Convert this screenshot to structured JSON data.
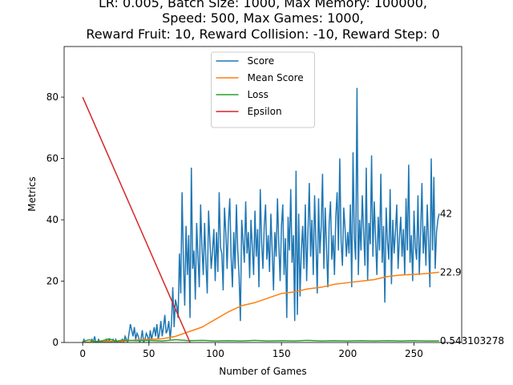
{
  "chart_data": {
    "type": "line",
    "title": [
      "LR: 0.005, Batch Size: 1000, Max Memory: 100000,",
      "Speed: 500, Max Games: 1000,",
      "Reward Fruit: 10, Reward Collision: -10, Reward Step: 0"
    ],
    "xlabel": "Number of Games",
    "ylabel": "Metrics",
    "xlim": [
      -14,
      286
    ],
    "ylim": [
      0,
      96.5
    ],
    "xticks": [
      0,
      50,
      100,
      150,
      200,
      250
    ],
    "yticks": [
      0,
      20,
      40,
      60,
      80
    ],
    "legend": "upper center",
    "x": [
      0,
      1,
      2,
      3,
      4,
      5,
      6,
      7,
      8,
      9,
      10,
      11,
      12,
      13,
      14,
      15,
      16,
      17,
      18,
      19,
      20,
      21,
      22,
      23,
      24,
      25,
      26,
      27,
      28,
      29,
      30,
      31,
      32,
      33,
      34,
      35,
      36,
      37,
      38,
      39,
      40,
      41,
      42,
      43,
      44,
      45,
      46,
      47,
      48,
      49,
      50,
      51,
      52,
      53,
      54,
      55,
      56,
      57,
      58,
      59,
      60,
      61,
      62,
      63,
      64,
      65,
      66,
      67,
      68,
      69,
      70,
      71,
      72,
      73,
      74,
      75,
      76,
      77,
      78,
      79,
      80,
      81,
      82,
      83,
      84,
      85,
      86,
      87,
      88,
      89,
      90,
      91,
      92,
      93,
      94,
      95,
      96,
      97,
      98,
      99,
      100,
      101,
      102,
      103,
      104,
      105,
      106,
      107,
      108,
      109,
      110,
      111,
      112,
      113,
      114,
      115,
      116,
      117,
      118,
      119,
      120,
      121,
      122,
      123,
      124,
      125,
      126,
      127,
      128,
      129,
      130,
      131,
      132,
      133,
      134,
      135,
      136,
      137,
      138,
      139,
      140,
      141,
      142,
      143,
      144,
      145,
      146,
      147,
      148,
      149,
      150,
      151,
      152,
      153,
      154,
      155,
      156,
      157,
      158,
      159,
      160,
      161,
      162,
      163,
      164,
      165,
      166,
      167,
      168,
      169,
      170,
      171,
      172,
      173,
      174,
      175,
      176,
      177,
      178,
      179,
      180,
      181,
      182,
      183,
      184,
      185,
      186,
      187,
      188,
      189,
      190,
      191,
      192,
      193,
      194,
      195,
      196,
      197,
      198,
      199,
      200,
      201,
      202,
      203,
      204,
      205,
      206,
      207,
      208,
      209,
      210,
      211,
      212,
      213,
      214,
      215,
      216,
      217,
      218,
      219,
      220,
      221,
      222,
      223,
      224,
      225,
      226,
      227,
      228,
      229,
      230,
      231,
      232,
      233,
      234,
      235,
      236,
      237,
      238,
      239,
      240,
      241,
      242,
      243,
      244,
      245,
      246,
      247,
      248,
      249,
      250,
      251,
      252,
      253,
      254,
      255,
      256,
      257,
      258,
      259,
      260,
      261,
      262,
      263,
      264,
      265,
      266,
      267,
      268,
      269
    ],
    "series": [
      {
        "name": "Score",
        "color": "#1f77b4",
        "values": [
          0,
          1,
          0,
          0,
          0,
          0,
          0,
          1,
          0,
          2,
          0,
          0,
          1,
          0,
          0,
          0,
          0,
          0,
          1,
          0,
          1,
          0,
          0,
          1,
          0,
          1,
          0,
          0,
          0,
          0,
          1,
          0,
          2,
          1,
          0,
          3,
          6,
          4,
          2,
          5,
          1,
          3,
          2,
          0,
          1,
          4,
          0,
          1,
          3,
          2,
          0,
          4,
          1,
          3,
          5,
          2,
          6,
          1,
          3,
          7,
          2,
          5,
          9,
          3,
          4,
          7,
          1,
          6,
          18,
          5,
          14,
          12,
          8,
          29,
          16,
          49,
          27,
          12,
          38,
          22,
          35,
          8,
          57,
          24,
          30,
          14,
          39,
          28,
          18,
          45,
          31,
          22,
          39,
          26,
          16,
          43,
          33,
          24,
          30,
          37,
          20,
          36,
          23,
          49,
          31,
          29,
          17,
          44,
          36,
          24,
          39,
          47,
          28,
          18,
          36,
          24,
          45,
          30,
          22,
          7,
          40,
          33,
          26,
          46,
          29,
          36,
          21,
          40,
          31,
          22,
          43,
          28,
          37,
          18,
          50,
          33,
          24,
          38,
          45,
          27,
          35,
          23,
          42,
          30,
          17,
          36,
          28,
          47,
          32,
          20,
          38,
          45,
          22,
          34,
          8,
          41,
          30,
          50,
          26,
          35,
          7,
          56,
          9,
          42,
          15,
          30,
          38,
          24,
          45,
          20,
          36,
          52,
          28,
          40,
          22,
          48,
          33,
          16,
          47,
          29,
          38,
          55,
          24,
          44,
          31,
          18,
          39,
          46,
          27,
          35,
          22,
          41,
          49,
          30,
          60,
          33,
          25,
          44,
          37,
          28,
          36,
          29,
          45,
          18,
          62,
          34,
          27,
          83,
          22,
          40,
          30,
          48,
          36,
          25,
          57,
          20,
          39,
          32,
          61,
          28,
          46,
          34,
          22,
          41,
          30,
          55,
          26,
          38,
          13,
          44,
          33,
          27,
          50,
          19,
          40,
          29,
          36,
          45,
          24,
          34,
          41,
          28,
          37,
          22,
          47,
          30,
          58,
          26,
          35,
          20,
          43,
          31,
          27,
          48,
          22,
          36,
          52,
          29,
          38,
          25,
          45,
          33,
          18,
          60,
          30,
          54,
          24,
          36,
          40,
          42
        ]
      },
      {
        "name": "Mean Score",
        "color": "#ff7f0e",
        "x": [
          0,
          10,
          20,
          30,
          40,
          50,
          60,
          70,
          80,
          90,
          100,
          110,
          120,
          130,
          140,
          150,
          160,
          170,
          180,
          190,
          200,
          210,
          220,
          230,
          240,
          250,
          260,
          269
        ],
        "values": [
          0,
          0.3,
          0.4,
          0.4,
          0.8,
          1,
          1.2,
          2,
          3.5,
          5,
          7.5,
          10,
          12,
          13,
          14.5,
          16,
          16.5,
          17.5,
          18,
          19,
          19.5,
          20,
          20.5,
          21.5,
          22,
          22.2,
          22.5,
          22.9
        ]
      },
      {
        "name": "Loss",
        "color": "#2ca02c",
        "x": [
          0,
          5,
          10,
          15,
          20,
          25,
          30,
          40,
          50,
          60,
          70,
          80,
          90,
          100,
          110,
          120,
          130,
          140,
          150,
          160,
          170,
          180,
          190,
          200,
          210,
          220,
          230,
          240,
          250,
          260,
          269
        ],
        "values": [
          0.3,
          0.9,
          0.2,
          0.6,
          1.2,
          0.4,
          0.8,
          0.6,
          0.7,
          0.5,
          0.9,
          0.6,
          0.7,
          0.5,
          0.6,
          0.5,
          0.7,
          0.5,
          0.6,
          0.5,
          0.7,
          0.5,
          0.6,
          0.5,
          0.6,
          0.5,
          0.6,
          0.5,
          0.6,
          0.5,
          0.54
        ]
      },
      {
        "name": "Epsilon",
        "color": "#d62728",
        "x": [
          0,
          81
        ],
        "values": [
          80,
          0
        ]
      }
    ],
    "annotations": [
      "42",
      "22.9",
      "0.543103278"
    ]
  }
}
